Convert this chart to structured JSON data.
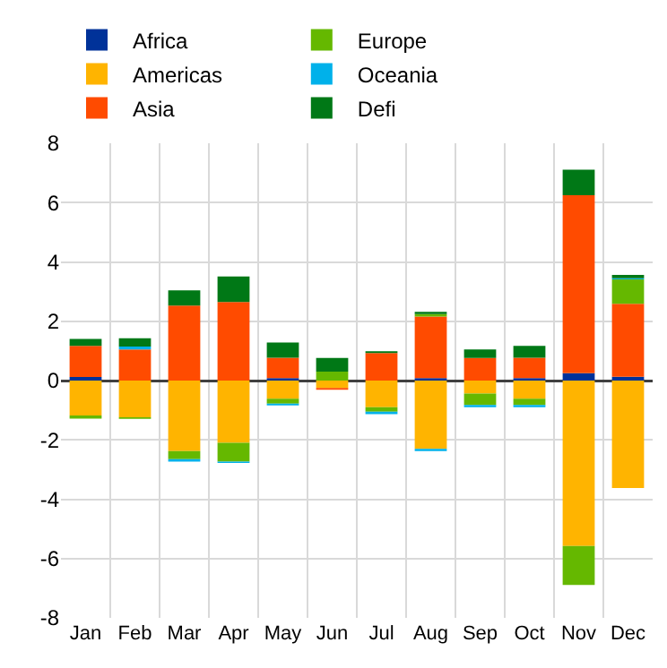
{
  "chart_data": {
    "type": "bar",
    "stacked": true,
    "categories": [
      "Jan",
      "Feb",
      "Mar",
      "Apr",
      "May",
      "Jun",
      "Jul",
      "Aug",
      "Sep",
      "Oct",
      "Nov",
      "Dec"
    ],
    "series": [
      {
        "name": "Africa",
        "color": "#003299",
        "values": [
          0.12,
          null,
          null,
          null,
          0.08,
          null,
          null,
          0.08,
          null,
          0.08,
          0.25,
          0.13
        ]
      },
      {
        "name": "Americas",
        "color": "#ffb400",
        "values": [
          -1.18,
          -1.24,
          -2.38,
          -2.1,
          -0.61,
          -0.25,
          -0.9,
          -2.3,
          -0.44,
          -0.61,
          -5.58,
          -3.62
        ]
      },
      {
        "name": "Asia",
        "color": "#ff4b00",
        "values": [
          1.05,
          1.05,
          2.53,
          2.65,
          0.69,
          -0.06,
          0.93,
          2.08,
          0.76,
          0.69,
          6.0,
          2.46
        ]
      },
      {
        "name": "Europe",
        "color": "#65b800",
        "values": [
          -0.1,
          -0.05,
          -0.27,
          -0.63,
          -0.17,
          0.3,
          -0.15,
          0.08,
          -0.38,
          -0.21,
          -1.31,
          0.82
        ]
      },
      {
        "name": "Oceania",
        "color": "#00b1ea",
        "values": [
          null,
          0.1,
          -0.08,
          -0.05,
          -0.06,
          null,
          -0.08,
          -0.08,
          -0.08,
          -0.08,
          null,
          0.04
        ]
      },
      {
        "name": "Defi",
        "color": "#007816",
        "values": [
          0.23,
          0.28,
          0.51,
          0.86,
          0.51,
          0.46,
          0.06,
          0.08,
          0.29,
          0.4,
          0.86,
          0.11
        ]
      }
    ],
    "ylim": [
      -8,
      8
    ],
    "yticks": [
      -8,
      -6,
      -4,
      -2,
      0,
      2,
      4,
      6,
      8
    ],
    "grid": true,
    "legend": "top left"
  }
}
